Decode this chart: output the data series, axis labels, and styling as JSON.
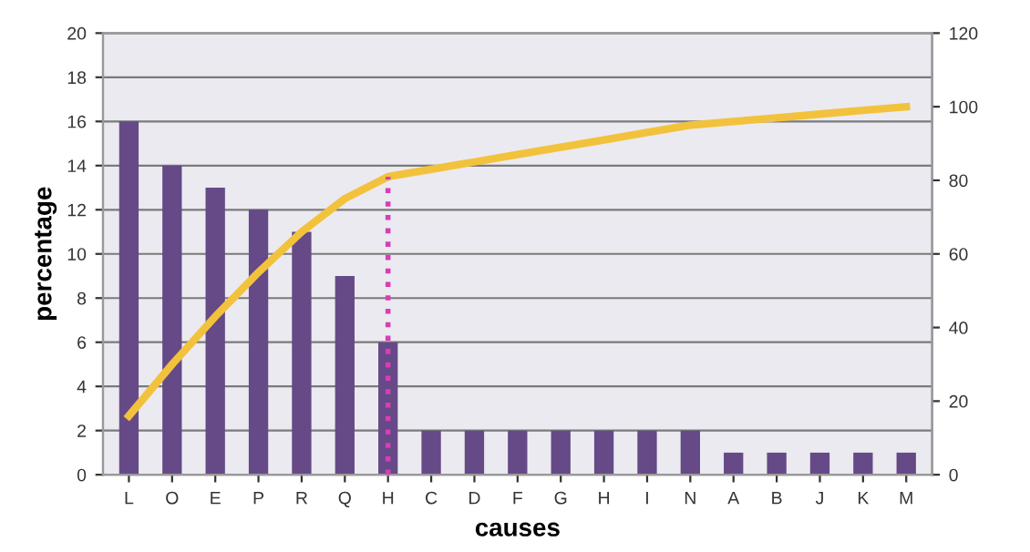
{
  "chart_data": {
    "type": "bar",
    "xlabel": "causes",
    "ylabel": "percentage",
    "categories": [
      "L",
      "O",
      "E",
      "P",
      "R",
      "Q",
      "H",
      "C",
      "D",
      "F",
      "G",
      "H",
      "I",
      "N",
      "A",
      "B",
      "J",
      "K",
      "M"
    ],
    "series": [
      {
        "color": "#654a87",
        "values": [
          16,
          14,
          13,
          12,
          11,
          9,
          6,
          2,
          2,
          2,
          2,
          2,
          2,
          2,
          1,
          1,
          1,
          1,
          1
        ]
      },
      {
        "type": "line",
        "axis": "y2",
        "color": "#f2c23c",
        "values": [
          16,
          30,
          43,
          55,
          66,
          75,
          81,
          83,
          85,
          87,
          89,
          91,
          93,
          95,
          96,
          97,
          98,
          99,
          100
        ]
      }
    ],
    "ylim": [
      0,
      20
    ],
    "yticks": [
      0,
      2,
      4,
      6,
      8,
      10,
      12,
      14,
      16,
      18,
      20
    ],
    "y2lim": [
      0,
      120
    ],
    "y2ticks": [
      0,
      20,
      40,
      60,
      80,
      100,
      120
    ],
    "ref_lines": [
      {
        "axis": "x",
        "value": "H",
        "color": "#d63fb5",
        "line_style": "dotted"
      }
    ],
    "grid": "y",
    "legend": false
  }
}
